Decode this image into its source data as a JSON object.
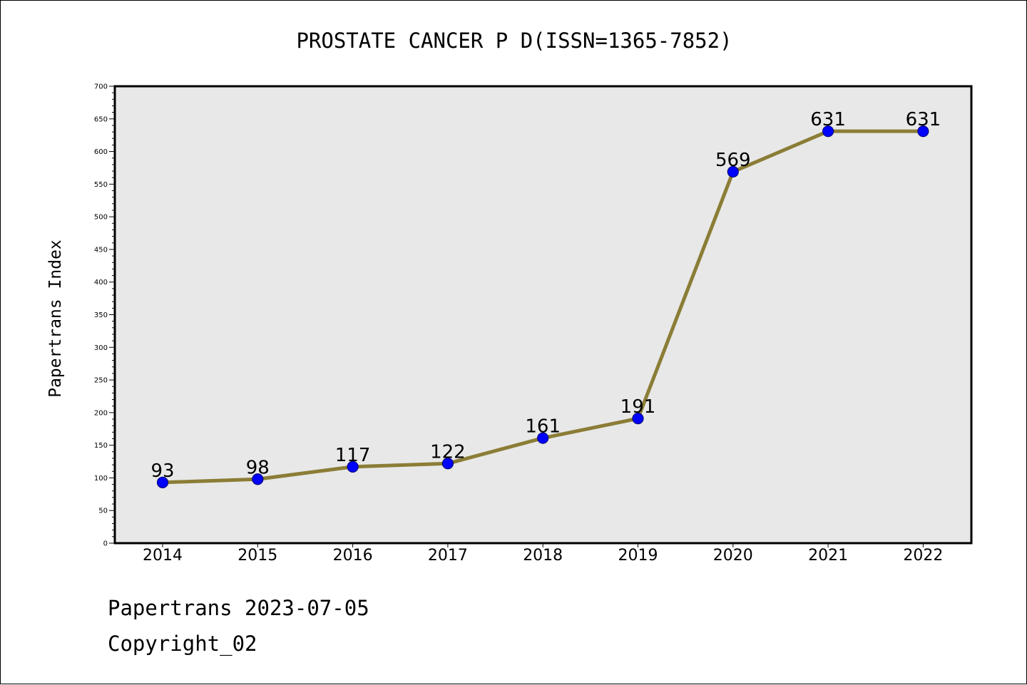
{
  "footer": {
    "line1": "Papertrans 2023-07-05",
    "line2": "Copyright_02"
  },
  "colors": {
    "background": "#ffffff",
    "plot_background": "#e8e8e8",
    "line": "#8b7d36",
    "marker": "#0000ff",
    "marker_edge": "#000080"
  },
  "chart_data": {
    "type": "line",
    "title": "PROSTATE CANCER P D(ISSN=1365-7852)",
    "xlabel": "",
    "ylabel": "Papertrans Index",
    "categories": [
      "2014",
      "2015",
      "2016",
      "2017",
      "2018",
      "2019",
      "2020",
      "2021",
      "2022"
    ],
    "values": [
      93,
      98,
      117,
      122,
      161,
      191,
      569,
      631,
      631
    ],
    "ylim": [
      0,
      700
    ],
    "yticks": [
      0,
      50,
      100,
      150,
      200,
      250,
      300,
      350,
      400,
      450,
      500,
      550,
      600,
      650,
      700
    ],
    "data_labels": true,
    "grid": false,
    "legend": "none"
  }
}
